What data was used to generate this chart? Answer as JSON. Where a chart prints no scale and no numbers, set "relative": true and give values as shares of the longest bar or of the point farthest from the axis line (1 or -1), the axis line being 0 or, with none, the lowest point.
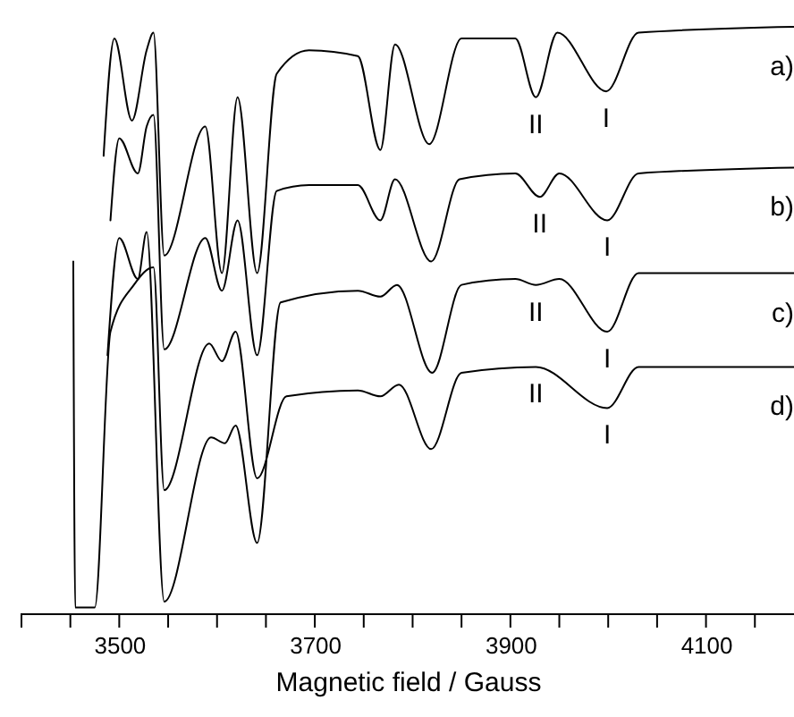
{
  "chart_data": {
    "type": "line",
    "relative": true,
    "xlabel": "Magnetic field / Gauss",
    "xlim": [
      3400,
      4190
    ],
    "xticks": [
      {
        "value": 3400,
        "label": null
      },
      {
        "value": 3450,
        "label": null
      },
      3500,
      {
        "value": 3550,
        "label": null
      },
      {
        "value": 3600,
        "label": null
      },
      {
        "value": 3650,
        "label": null
      },
      3700,
      {
        "value": 3750,
        "label": null
      },
      {
        "value": 3800,
        "label": null
      },
      {
        "value": 3850,
        "label": null
      },
      3900,
      {
        "value": 3950,
        "label": null
      },
      {
        "value": 4000,
        "label": null
      },
      {
        "value": 4050,
        "label": null
      },
      4100,
      {
        "value": 4150,
        "label": null
      }
    ],
    "grid": false,
    "series": [
      {
        "name": "a)",
        "color": "#000000",
        "x": [
          3484,
          3495,
          3513,
          3528,
          3535,
          3546,
          3588,
          3605,
          3621,
          3641,
          3661,
          3694,
          3744,
          3767,
          3782,
          3817,
          3850,
          3905,
          3926,
          3948,
          3998,
          4031,
          4190
        ],
        "values": [
          0.78,
          0.98,
          0.84,
          0.96,
          0.99,
          0.61,
          0.83,
          0.58,
          0.88,
          0.58,
          0.92,
          0.96,
          0.95,
          0.79,
          0.97,
          0.8,
          0.98,
          0.98,
          0.88,
          0.99,
          0.89,
          0.99,
          1.0
        ]
      },
      {
        "name": "b)",
        "color": "#000000",
        "x": [
          3491,
          3500,
          3519,
          3528,
          3535,
          3546,
          3588,
          3605,
          3621,
          3641,
          3661,
          3694,
          3744,
          3767,
          3782,
          3819,
          3848,
          3905,
          3930,
          3950,
          3999,
          4031,
          4190
        ],
        "values": [
          0.67,
          0.81,
          0.75,
          0.83,
          0.85,
          0.45,
          0.64,
          0.55,
          0.67,
          0.44,
          0.72,
          0.73,
          0.73,
          0.67,
          0.74,
          0.6,
          0.74,
          0.75,
          0.71,
          0.75,
          0.67,
          0.75,
          0.76
        ]
      },
      {
        "name": "c)",
        "color": "#000000",
        "x": [
          3488,
          3500,
          3519,
          3528,
          3546,
          3594,
          3608,
          3619,
          3641,
          3665,
          3744,
          3767,
          3784,
          3820,
          3850,
          3905,
          3926,
          3950,
          3999,
          4031,
          4190
        ],
        "values": [
          0.44,
          0.64,
          0.57,
          0.65,
          0.02,
          0.3,
          0.29,
          0.32,
          0.12,
          0.53,
          0.55,
          0.54,
          0.56,
          0.41,
          0.56,
          0.57,
          0.56,
          0.57,
          0.48,
          0.58,
          0.58
        ]
      },
      {
        "name": "d)",
        "color": "#000000",
        "x": [
          3453,
          3455,
          3475,
          3491,
          3515,
          3535,
          3546,
          3592,
          3605,
          3619,
          3641,
          3671,
          3744,
          3767,
          3786,
          3819,
          3850,
          3926,
          3999,
          4031,
          4190
        ],
        "values": [
          0.6,
          0.01,
          0.01,
          0.48,
          0.56,
          0.59,
          0.21,
          0.46,
          0.43,
          0.48,
          0.23,
          0.37,
          0.38,
          0.37,
          0.39,
          0.28,
          0.41,
          0.42,
          0.35,
          0.42,
          0.42
        ]
      }
    ],
    "annotations": [
      {
        "text": "II",
        "x": 3926,
        "y": 0.88
      },
      {
        "text": "I",
        "x": 3998,
        "y": 0.89
      },
      {
        "text": "II",
        "x": 3930,
        "y": 0.71
      },
      {
        "text": "I",
        "x": 3999,
        "y": 0.67
      },
      {
        "text": "II",
        "x": 3926,
        "y": 0.56
      },
      {
        "text": "I",
        "x": 3999,
        "y": 0.48
      },
      {
        "text": "II",
        "x": 3926,
        "y": 0.42
      },
      {
        "text": "I",
        "x": 3999,
        "y": 0.35
      }
    ]
  }
}
